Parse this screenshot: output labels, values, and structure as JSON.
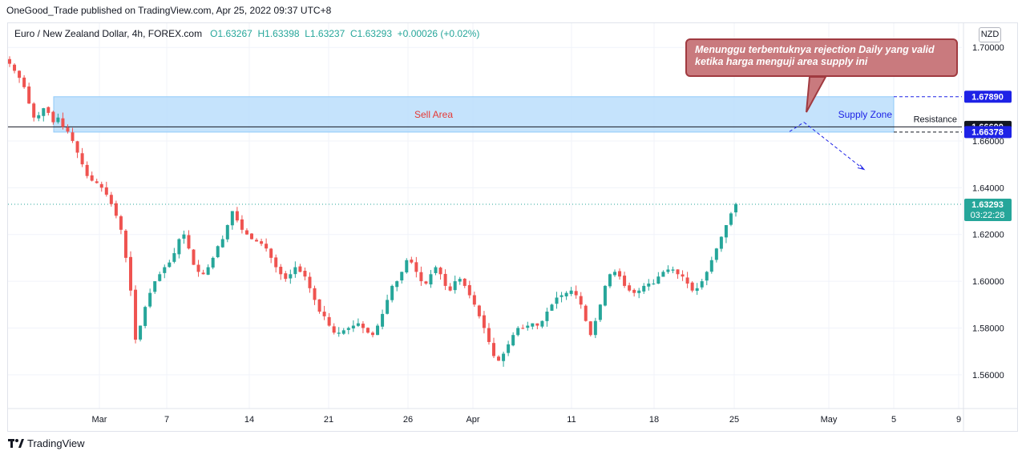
{
  "header": {
    "published_line": "OneGood_Trade published on TradingView.com, Apr 25, 2022 09:37 UTC+8"
  },
  "legend": {
    "symbol": "Euro / New Zealand Dollar, 4h, FOREX.com",
    "open": "O1.63267",
    "high": "H1.63398",
    "low": "L1.63237",
    "close": "C1.63293",
    "change": "+0.00026 (+0.02%)"
  },
  "currency_badge": "NZD",
  "footer": {
    "brand": "TradingView"
  },
  "colors": {
    "up": "#26a69a",
    "down": "#ef5350",
    "zone_fill": "#bbdefb",
    "zone_stroke": "#90caf9",
    "label_blue": "#1e22e6",
    "annotation_fill": "#c97a7e"
  },
  "annotations": {
    "note": "Menunggu terbentuknya rejection Daily yang valid ketika harga menguji area supply ini",
    "zone_center_label": "Sell Area",
    "zone_right_label": "Supply Zone",
    "resistance_label": "Resistance"
  },
  "chart_data": {
    "type": "candlestick",
    "ylim": [
      1.55,
      1.71
    ],
    "y_ticks": [
      "1.70000",
      "1.66000",
      "1.64000",
      "1.62000",
      "1.60000",
      "1.58000",
      "1.56000"
    ],
    "y_tick_values": [
      1.7,
      1.66,
      1.64,
      1.62,
      1.6,
      1.58,
      1.56
    ],
    "x_ticks": [
      "Mar",
      "7",
      "14",
      "21",
      "26",
      "Apr",
      "11",
      "18",
      "25",
      "May",
      "5",
      "9"
    ],
    "supply_zone": {
      "top": 1.6789,
      "bottom": 1.66378
    },
    "resistance": 1.666,
    "last_price": 1.63293,
    "price_labels": [
      {
        "text": "1.67890",
        "value": 1.6789,
        "style": "blue"
      },
      {
        "text": "1.66600",
        "value": 1.666,
        "style": "black"
      },
      {
        "text": "1.66378",
        "value": 1.66378,
        "style": "blue"
      },
      {
        "text": "1.63293",
        "value": 1.63293,
        "style": "green",
        "sub": "03:22:28"
      }
    ],
    "close_path": [
      1.693,
      1.69,
      1.687,
      1.683,
      1.676,
      1.67,
      1.671,
      1.674,
      1.672,
      1.668,
      1.67,
      1.666,
      1.664,
      1.66,
      1.655,
      1.65,
      1.645,
      1.643,
      1.642,
      1.64,
      1.637,
      1.633,
      1.628,
      1.622,
      1.61,
      1.596,
      1.575,
      1.581,
      1.589,
      1.595,
      1.6,
      1.603,
      1.606,
      1.608,
      1.612,
      1.618,
      1.62,
      1.614,
      1.607,
      1.604,
      1.603,
      1.606,
      1.61,
      1.615,
      1.618,
      1.624,
      1.63,
      1.626,
      1.622,
      1.62,
      1.618,
      1.617,
      1.616,
      1.614,
      1.61,
      1.606,
      1.603,
      1.601,
      1.603,
      1.606,
      1.604,
      1.602,
      1.597,
      1.592,
      1.587,
      1.585,
      1.581,
      1.578,
      1.578,
      1.579,
      1.58,
      1.581,
      1.582,
      1.58,
      1.578,
      1.577,
      1.581,
      1.586,
      1.592,
      1.598,
      1.6,
      1.604,
      1.609,
      1.608,
      1.604,
      1.6,
      1.599,
      1.603,
      1.606,
      1.603,
      1.598,
      1.596,
      1.6,
      1.601,
      1.598,
      1.594,
      1.59,
      1.585,
      1.58,
      1.574,
      1.568,
      1.566,
      1.569,
      1.573,
      1.577,
      1.58,
      1.58,
      1.581,
      1.582,
      1.581,
      1.583,
      1.587,
      1.59,
      1.593,
      1.594,
      1.595,
      1.596,
      1.594,
      1.59,
      1.583,
      1.577,
      1.583,
      1.59,
      1.598,
      1.603,
      1.604,
      1.602,
      1.598,
      1.596,
      1.595,
      1.596,
      1.598,
      1.599,
      1.599,
      1.602,
      1.604,
      1.605,
      1.605,
      1.603,
      1.602,
      1.599,
      1.596,
      1.597,
      1.6,
      1.604,
      1.609,
      1.614,
      1.619,
      1.624,
      1.629,
      1.633
    ]
  }
}
